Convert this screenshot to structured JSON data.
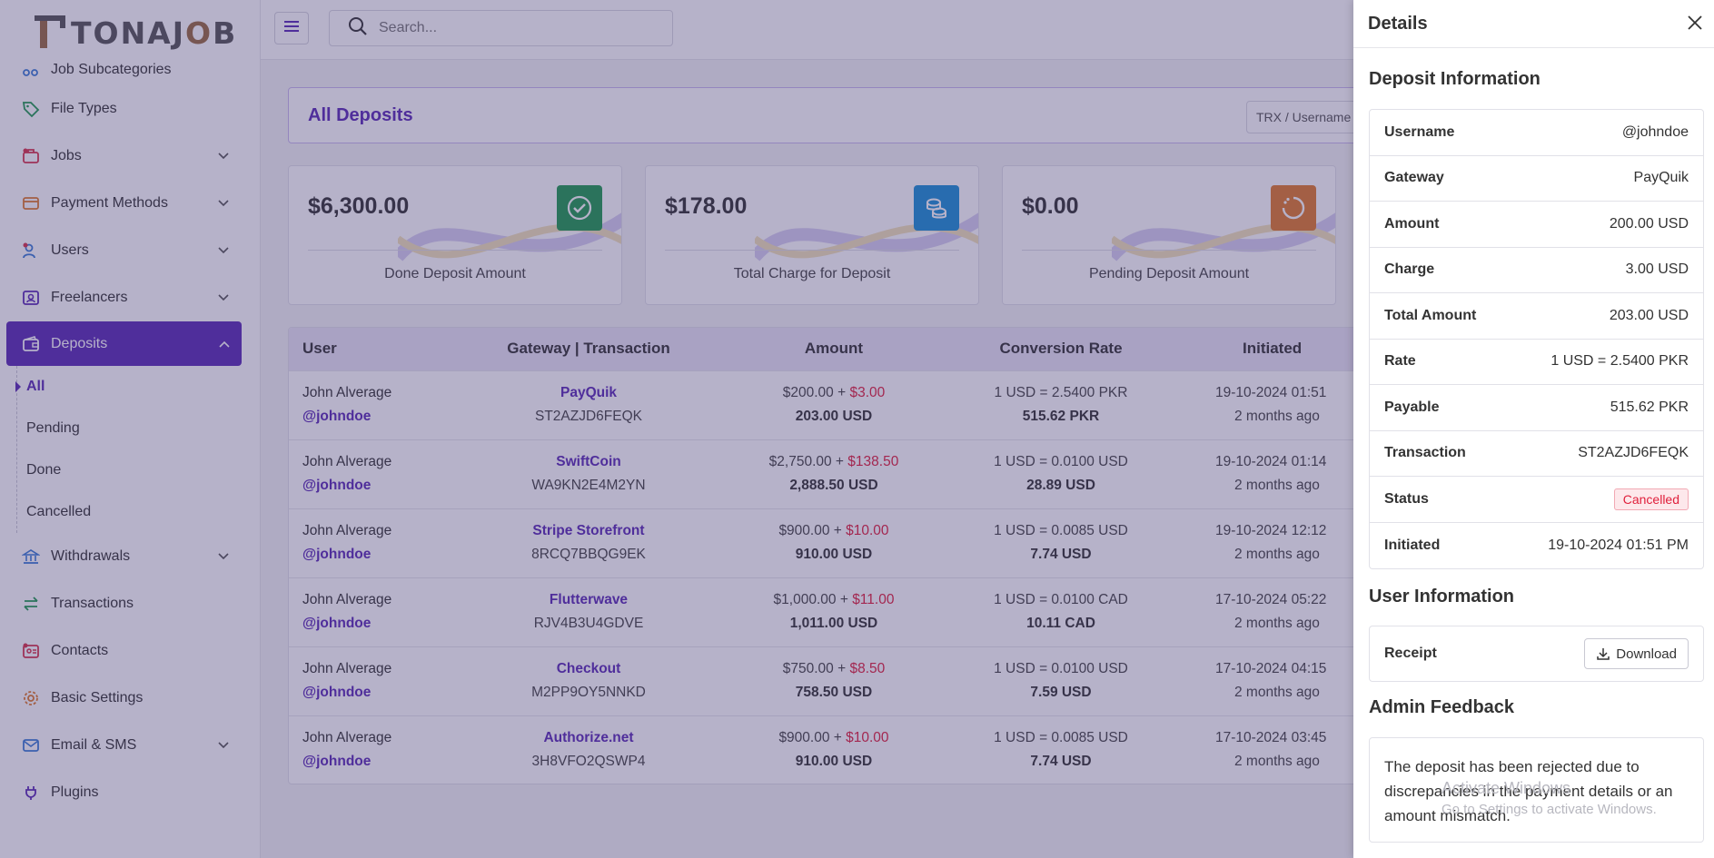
{
  "brand": {
    "name_part1": "TONAJ",
    "name_o": "O",
    "name_part2": "B"
  },
  "sidebar": {
    "partial_item": "Job Subcategories",
    "items": [
      {
        "label": "File Types",
        "icon": "tag-icon"
      },
      {
        "label": "Jobs",
        "icon": "briefcase-icon"
      },
      {
        "label": "Payment Methods",
        "icon": "credit-card-icon"
      },
      {
        "label": "Users",
        "icon": "users-icon"
      },
      {
        "label": "Freelancers",
        "icon": "freelancer-icon"
      },
      {
        "label": "Deposits",
        "icon": "wallet-icon"
      },
      {
        "label": "Withdrawals",
        "icon": "bank-icon"
      },
      {
        "label": "Transactions",
        "icon": "exchange-icon"
      },
      {
        "label": "Contacts",
        "icon": "contacts-icon"
      },
      {
        "label": "Basic Settings",
        "icon": "gear-icon"
      },
      {
        "label": "Email & SMS",
        "icon": "mail-icon"
      },
      {
        "label": "Plugins",
        "icon": "plug-icon"
      }
    ],
    "deposit_sub": [
      "All",
      "Pending",
      "Done",
      "Cancelled"
    ]
  },
  "topbar": {
    "search_placeholder": "Search..."
  },
  "header": {
    "title": "All Deposits",
    "filter_placeholder": "TRX / Username"
  },
  "cards": [
    {
      "amount": "$6,300.00",
      "caption": "Done Deposit Amount",
      "color": "#1f9a4f",
      "icon": "check-circle-icon"
    },
    {
      "amount": "$178.00",
      "caption": "Total Charge for Deposit",
      "color": "#1a8fd6",
      "icon": "coins-icon"
    },
    {
      "amount": "$0.00",
      "caption": "Pending Deposit Amount",
      "color": "#e07a2a",
      "icon": "spinner-icon"
    }
  ],
  "table": {
    "headers": [
      "User",
      "Gateway | Transaction",
      "Amount",
      "Conversion Rate",
      "Initiated"
    ],
    "rows": [
      {
        "name": "John Alverage",
        "handle": "@johndoe",
        "gateway": "PayQuik",
        "trx": "ST2AZJD6FEQK",
        "amount": "$200.00",
        "charge": "$3.00",
        "total": "203.00 USD",
        "rate": "1 USD = 2.5400 PKR",
        "payable": "515.62 PKR",
        "date": "19-10-2024 01:51",
        "ago": "2 months ago"
      },
      {
        "name": "John Alverage",
        "handle": "@johndoe",
        "gateway": "SwiftCoin",
        "trx": "WA9KN2E4M2YN",
        "amount": "$2,750.00",
        "charge": "$138.50",
        "total": "2,888.50 USD",
        "rate": "1 USD = 0.0100 USD",
        "payable": "28.89 USD",
        "date": "19-10-2024 01:14",
        "ago": "2 months ago"
      },
      {
        "name": "John Alverage",
        "handle": "@johndoe",
        "gateway": "Stripe Storefront",
        "trx": "8RCQ7BBQG9EK",
        "amount": "$900.00",
        "charge": "$10.00",
        "total": "910.00 USD",
        "rate": "1 USD = 0.0085 USD",
        "payable": "7.74 USD",
        "date": "19-10-2024 12:12",
        "ago": "2 months ago"
      },
      {
        "name": "John Alverage",
        "handle": "@johndoe",
        "gateway": "Flutterwave",
        "trx": "RJV4B3U4GDVE",
        "amount": "$1,000.00",
        "charge": "$11.00",
        "total": "1,011.00 USD",
        "rate": "1 USD = 0.0100 CAD",
        "payable": "10.11 CAD",
        "date": "17-10-2024 05:22",
        "ago": "2 months ago"
      },
      {
        "name": "John Alverage",
        "handle": "@johndoe",
        "gateway": "Checkout",
        "trx": "M2PP9OY5NNKD",
        "amount": "$750.00",
        "charge": "$8.50",
        "total": "758.50 USD",
        "rate": "1 USD = 0.0100 USD",
        "payable": "7.59 USD",
        "date": "17-10-2024 04:15",
        "ago": "2 months ago"
      },
      {
        "name": "John Alverage",
        "handle": "@johndoe",
        "gateway": "Authorize.net",
        "trx": "3H8VFO2QSWP4",
        "amount": "$900.00",
        "charge": "$10.00",
        "total": "910.00 USD",
        "rate": "1 USD = 0.0085 USD",
        "payable": "7.74 USD",
        "date": "17-10-2024 03:45",
        "ago": "2 months ago"
      }
    ]
  },
  "details": {
    "title": "Details",
    "deposit_section": "Deposit Information",
    "deposit_rows": [
      {
        "key": "Username",
        "value": "@johndoe"
      },
      {
        "key": "Gateway",
        "value": "PayQuik"
      },
      {
        "key": "Amount",
        "value": "200.00 USD"
      },
      {
        "key": "Charge",
        "value": "3.00 USD"
      },
      {
        "key": "Total Amount",
        "value": "203.00 USD"
      },
      {
        "key": "Rate",
        "value": "1 USD = 2.5400 PKR"
      },
      {
        "key": "Payable",
        "value": "515.62 PKR"
      },
      {
        "key": "Transaction",
        "value": "ST2AZJD6FEQK"
      },
      {
        "key": "Status",
        "value": "Cancelled"
      },
      {
        "key": "Initiated",
        "value": "19-10-2024 01:51 PM"
      }
    ],
    "user_section": "User Information",
    "receipt_label": "Receipt",
    "download_label": "Download",
    "feedback_section": "Admin Feedback",
    "feedback_text": "The deposit has been rejected due to discrepancies in the payment details or an amount mismatch."
  },
  "watermark": {
    "line1": "Activate Windows",
    "line2": "Go to Settings to activate Windows."
  }
}
